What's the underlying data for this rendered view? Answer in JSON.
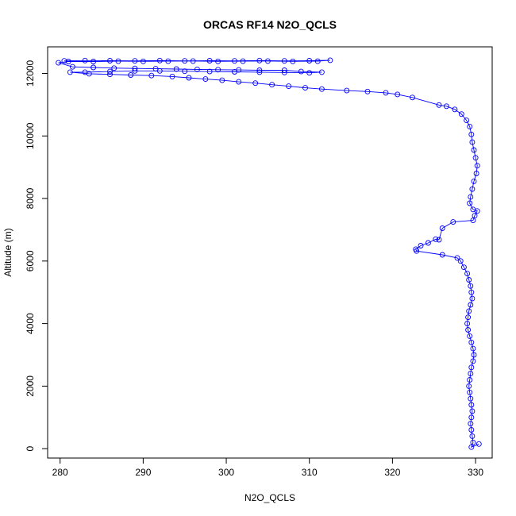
{
  "chart_data": {
    "type": "scatter",
    "title": "ORCAS RF14 N2O_QCLS",
    "xlabel": "N2O_QCLS",
    "ylabel": "Altitude (m)",
    "xlim": [
      278.5,
      332
    ],
    "ylim": [
      -300,
      12850
    ],
    "x_ticks": [
      280,
      290,
      300,
      310,
      320,
      330
    ],
    "y_ticks": [
      0,
      2000,
      4000,
      6000,
      8000,
      10000,
      12000
    ],
    "grid": false,
    "legend": "none",
    "marker": "open-circle",
    "connect_points": true,
    "color": "#0000ff",
    "series": [
      {
        "values": [
          [
            280.5,
            12400
          ],
          [
            283,
            12410
          ],
          [
            286,
            12405
          ],
          [
            289,
            12400
          ],
          [
            292,
            12410
          ],
          [
            295,
            12400
          ],
          [
            298,
            12405
          ],
          [
            301,
            12400
          ],
          [
            304,
            12410
          ],
          [
            307,
            12400
          ],
          [
            310,
            12405
          ],
          [
            312.5,
            12420
          ],
          [
            311,
            12390
          ],
          [
            308,
            12385
          ],
          [
            305,
            12395
          ],
          [
            302,
            12390
          ],
          [
            299,
            12385
          ],
          [
            296,
            12395
          ],
          [
            293,
            12390
          ],
          [
            290,
            12385
          ],
          [
            287,
            12390
          ],
          [
            284,
            12380
          ],
          [
            281,
            12380
          ],
          [
            279.8,
            12340
          ],
          [
            281.5,
            12210
          ],
          [
            284,
            12190
          ],
          [
            286.5,
            12170
          ],
          [
            289,
            12160
          ],
          [
            291.5,
            12150
          ],
          [
            294,
            12140
          ],
          [
            296.5,
            12130
          ],
          [
            299,
            12120
          ],
          [
            301.5,
            12110
          ],
          [
            304,
            12100
          ],
          [
            307,
            12100
          ],
          [
            309,
            12060
          ],
          [
            311.5,
            12040
          ],
          [
            310,
            12020
          ],
          [
            307,
            12030
          ],
          [
            304,
            12040
          ],
          [
            301,
            12050
          ],
          [
            298,
            12060
          ],
          [
            295,
            12070
          ],
          [
            292,
            12080
          ],
          [
            289,
            12080
          ],
          [
            286,
            12060
          ],
          [
            283,
            12040
          ],
          [
            281.2,
            12040
          ],
          [
            283.5,
            11990
          ],
          [
            286,
            11970
          ],
          [
            288.5,
            11950
          ],
          [
            291,
            11930
          ],
          [
            293.5,
            11900
          ],
          [
            295.5,
            11860
          ],
          [
            297.5,
            11820
          ],
          [
            299.5,
            11780
          ],
          [
            301.5,
            11730
          ],
          [
            303.5,
            11690
          ],
          [
            305.5,
            11640
          ],
          [
            307.5,
            11590
          ],
          [
            309.5,
            11540
          ],
          [
            311.5,
            11500
          ],
          [
            314.5,
            11450
          ],
          [
            317,
            11420
          ],
          [
            319.2,
            11380
          ],
          [
            320.6,
            11330
          ],
          [
            322.4,
            11230
          ],
          [
            325.6,
            10990
          ],
          [
            326.5,
            10950
          ],
          [
            327.5,
            10850
          ],
          [
            328.3,
            10700
          ],
          [
            328.9,
            10500
          ],
          [
            329.3,
            10300
          ],
          [
            329.5,
            10050
          ],
          [
            329.6,
            9800
          ],
          [
            329.8,
            9550
          ],
          [
            330,
            9300
          ],
          [
            330.2,
            9050
          ],
          [
            330.1,
            8800
          ],
          [
            329.8,
            8550
          ],
          [
            329.6,
            8300
          ],
          [
            329.4,
            8050
          ],
          [
            329.3,
            7850
          ],
          [
            329.7,
            7650
          ],
          [
            330.2,
            7600
          ],
          [
            329.9,
            7450
          ],
          [
            329.7,
            7300
          ],
          [
            327.3,
            7250
          ],
          [
            326,
            7050
          ],
          [
            325.6,
            6680
          ],
          [
            325.2,
            6700
          ],
          [
            324.3,
            6580
          ],
          [
            323.4,
            6490
          ],
          [
            322.8,
            6380
          ],
          [
            322.9,
            6320
          ],
          [
            326,
            6200
          ],
          [
            327.8,
            6100
          ],
          [
            328.2,
            6000
          ],
          [
            328.6,
            5800
          ],
          [
            329.0,
            5600
          ],
          [
            329.2,
            5400
          ],
          [
            329.4,
            5200
          ],
          [
            329.5,
            5000
          ],
          [
            329.6,
            4800
          ],
          [
            329.4,
            4600
          ],
          [
            329.2,
            4400
          ],
          [
            329.1,
            4200
          ],
          [
            329.0,
            4000
          ],
          [
            329.1,
            3800
          ],
          [
            329.3,
            3600
          ],
          [
            329.5,
            3400
          ],
          [
            329.7,
            3200
          ],
          [
            329.8,
            3000
          ],
          [
            329.7,
            2800
          ],
          [
            329.5,
            2600
          ],
          [
            329.4,
            2400
          ],
          [
            329.3,
            2200
          ],
          [
            329.2,
            2000
          ],
          [
            329.3,
            1800
          ],
          [
            329.4,
            1600
          ],
          [
            329.5,
            1400
          ],
          [
            329.6,
            1200
          ],
          [
            329.5,
            1000
          ],
          [
            329.4,
            800
          ],
          [
            329.5,
            600
          ],
          [
            329.6,
            400
          ],
          [
            329.7,
            200
          ],
          [
            329.5,
            50
          ],
          [
            330.4,
            150
          ]
        ]
      }
    ]
  }
}
